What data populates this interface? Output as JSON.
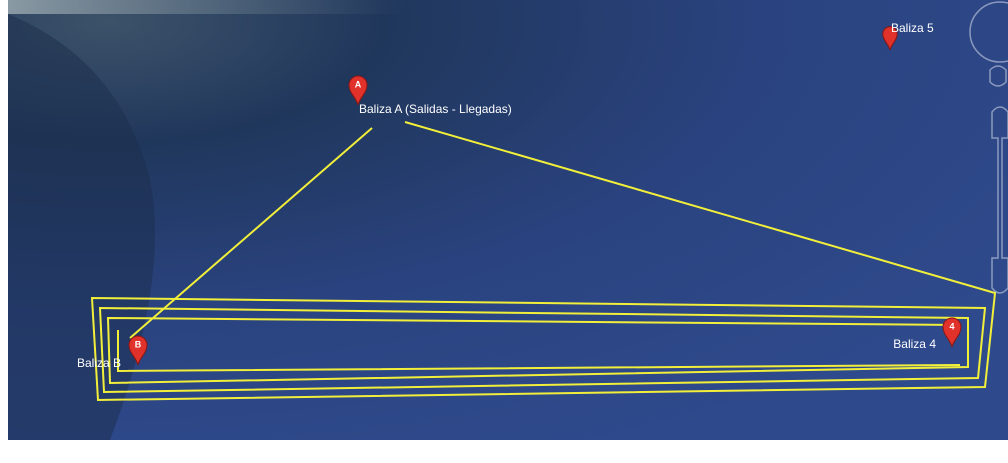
{
  "markers": [
    {
      "label": "Baliza 5"
    },
    {
      "pin": "A",
      "label": "Baliza A (Salidas - Llegadas)"
    },
    {
      "pin": "B",
      "label": "Baliza B"
    },
    {
      "pin": "4",
      "label": "Baliza 4"
    }
  ]
}
